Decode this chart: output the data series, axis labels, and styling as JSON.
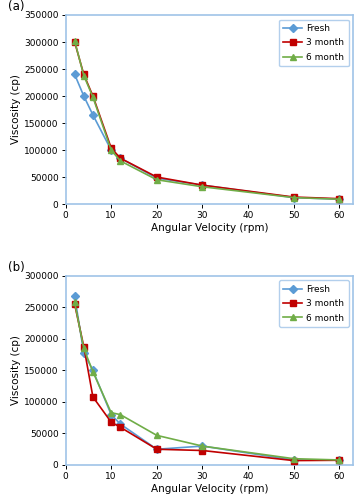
{
  "panel_a": {
    "title": "(a)",
    "xlabel": "Angular Velocity (rpm)",
    "ylabel": "Viscosity (cp)",
    "ylim": [
      0,
      350000
    ],
    "xlim": [
      0,
      63
    ],
    "yticks": [
      0,
      50000,
      100000,
      150000,
      200000,
      250000,
      300000,
      350000
    ],
    "xticks": [
      0,
      10,
      20,
      30,
      40,
      50,
      60
    ],
    "series": {
      "Fresh": {
        "x": [
          2,
          4,
          6,
          10,
          12,
          20,
          30,
          50,
          60
        ],
        "y": [
          240000,
          200000,
          165000,
          100000,
          85000,
          48000,
          35000,
          12000,
          9000
        ],
        "color": "#5B9BD5",
        "marker": "D",
        "linewidth": 1.2,
        "markersize": 4
      },
      "3 month": {
        "x": [
          2,
          4,
          6,
          10,
          12,
          20,
          30,
          50,
          60
        ],
        "y": [
          300000,
          240000,
          200000,
          104000,
          85000,
          50000,
          35000,
          13000,
          10000
        ],
        "color": "#C00000",
        "marker": "s",
        "linewidth": 1.2,
        "markersize": 4
      },
      "6 month": {
        "x": [
          2,
          4,
          6,
          10,
          12,
          20,
          30,
          50,
          60
        ],
        "y": [
          302000,
          238000,
          198000,
          100000,
          80000,
          45000,
          32000,
          12000,
          9000
        ],
        "color": "#70AD47",
        "marker": "^",
        "linewidth": 1.2,
        "markersize": 4
      }
    }
  },
  "panel_b": {
    "title": "(b)",
    "xlabel": "Angular Velocity (rpm)",
    "ylabel": "Viscosity (cp)",
    "ylim": [
      0,
      300000
    ],
    "xlim": [
      0,
      63
    ],
    "yticks": [
      0,
      50000,
      100000,
      150000,
      200000,
      250000,
      300000
    ],
    "xticks": [
      0,
      10,
      20,
      30,
      40,
      50,
      60
    ],
    "series": {
      "Fresh": {
        "x": [
          2,
          4,
          6,
          10,
          12,
          20,
          30,
          50,
          60
        ],
        "y": [
          268000,
          178000,
          150000,
          80000,
          65000,
          25000,
          30000,
          8000,
          8000
        ],
        "color": "#5B9BD5",
        "marker": "D",
        "linewidth": 1.2,
        "markersize": 4
      },
      "3 month": {
        "x": [
          2,
          4,
          6,
          10,
          12,
          20,
          30,
          50,
          60
        ],
        "y": [
          255000,
          188000,
          108000,
          68000,
          60000,
          25000,
          23000,
          7000,
          7500
        ],
        "color": "#C00000",
        "marker": "s",
        "linewidth": 1.2,
        "markersize": 4
      },
      "6 month": {
        "x": [
          2,
          4,
          6,
          10,
          12,
          20,
          30,
          50,
          60
        ],
        "y": [
          258000,
          185000,
          148000,
          83000,
          80000,
          47000,
          30000,
          10000,
          8000
        ],
        "color": "#70AD47",
        "marker": "^",
        "linewidth": 1.2,
        "markersize": 4
      }
    }
  },
  "legend_order": [
    "Fresh",
    "3 month",
    "6 month"
  ],
  "border_color": "#A0C4E8",
  "background_color": "#ffffff",
  "fig_width": 3.64,
  "fig_height": 5.0,
  "dpi": 100
}
